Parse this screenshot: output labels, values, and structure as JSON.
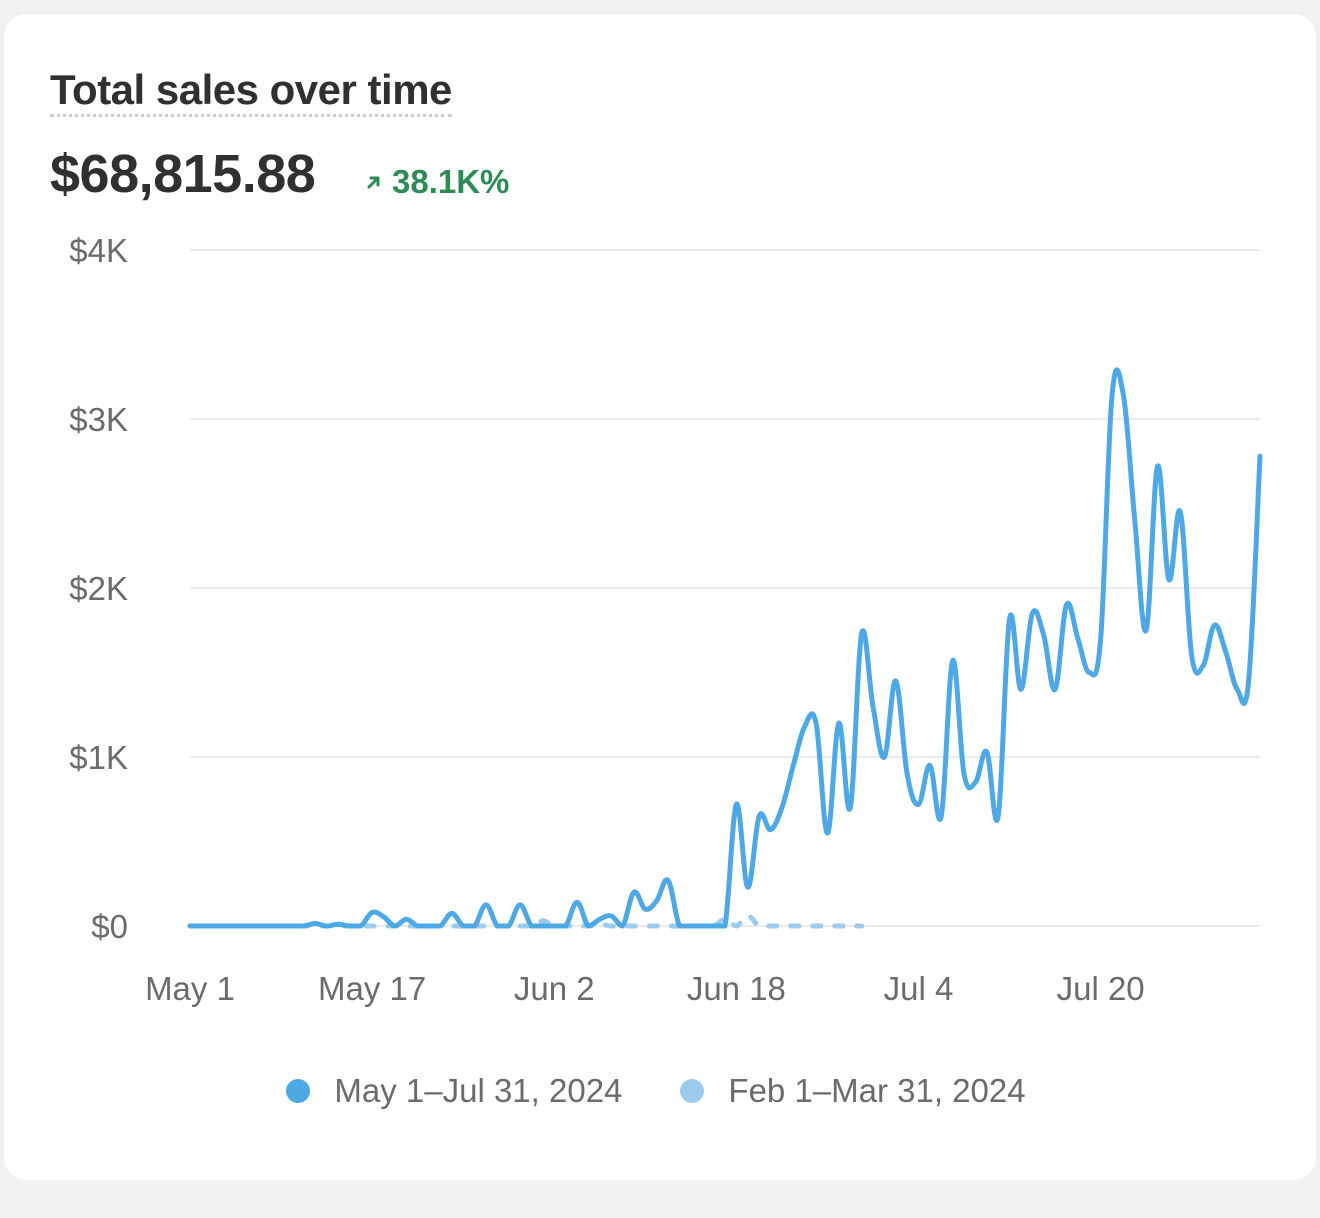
{
  "header": {
    "title": "Total sales over time",
    "total": "$68,815.88",
    "change": "38.1K%",
    "change_direction": "up",
    "change_color": "#2e8b57"
  },
  "chart_data": {
    "type": "line",
    "title": "Total sales over time",
    "xlabel": "",
    "ylabel": "",
    "ylim": [
      0,
      4000
    ],
    "y_ticks": [
      {
        "value": 0,
        "label": "$0"
      },
      {
        "value": 1000,
        "label": "$1K"
      },
      {
        "value": 2000,
        "label": "$2K"
      },
      {
        "value": 3000,
        "label": "$3K"
      },
      {
        "value": 4000,
        "label": "$4K"
      }
    ],
    "x_ticks": [
      {
        "index": 0,
        "label": "May 1"
      },
      {
        "index": 16,
        "label": "May 17"
      },
      {
        "index": 32,
        "label": "Jun 2"
      },
      {
        "index": 48,
        "label": "Jun 18"
      },
      {
        "index": 64,
        "label": "Jul 4"
      },
      {
        "index": 80,
        "label": "Jul 20"
      }
    ],
    "grid": true,
    "legend_position": "bottom-center",
    "series": [
      {
        "name": "May 1–Jul 31, 2024",
        "color": "#4fa8e6",
        "style": "solid",
        "values": [
          0,
          0,
          0,
          0,
          0,
          0,
          0,
          0,
          0,
          0,
          0,
          15,
          0,
          10,
          0,
          0,
          80,
          55,
          0,
          40,
          0,
          0,
          0,
          75,
          0,
          0,
          125,
          0,
          0,
          125,
          0,
          0,
          0,
          0,
          140,
          0,
          40,
          60,
          0,
          200,
          100,
          150,
          270,
          0,
          0,
          0,
          0,
          0,
          720,
          230,
          650,
          570,
          700,
          950,
          1180,
          1200,
          550,
          1200,
          700,
          1730,
          1300,
          1000,
          1450,
          900,
          720,
          950,
          650,
          1570,
          900,
          850,
          1030,
          650,
          1820,
          1400,
          1850,
          1720,
          1400,
          1900,
          1700,
          1500,
          1700,
          3140,
          3140,
          2400,
          1750,
          2720,
          2050,
          2450,
          1600,
          1540,
          1780,
          1620,
          1400,
          1450,
          2780
        ]
      },
      {
        "name": "Feb 1–Mar 31, 2024",
        "color": "#9ccbed",
        "style": "dashed",
        "values": [
          0,
          0,
          0,
          0,
          0,
          0,
          0,
          0,
          0,
          0,
          0,
          0,
          0,
          0,
          0,
          0,
          0,
          0,
          0,
          0,
          0,
          0,
          0,
          0,
          0,
          0,
          0,
          0,
          0,
          0,
          0,
          30,
          0,
          0,
          0,
          0,
          10,
          0,
          0,
          0,
          0,
          0,
          0,
          0,
          0,
          0,
          0,
          40,
          0,
          60,
          0,
          0,
          0,
          0,
          0,
          0,
          0,
          0,
          0,
          0
        ]
      }
    ]
  }
}
